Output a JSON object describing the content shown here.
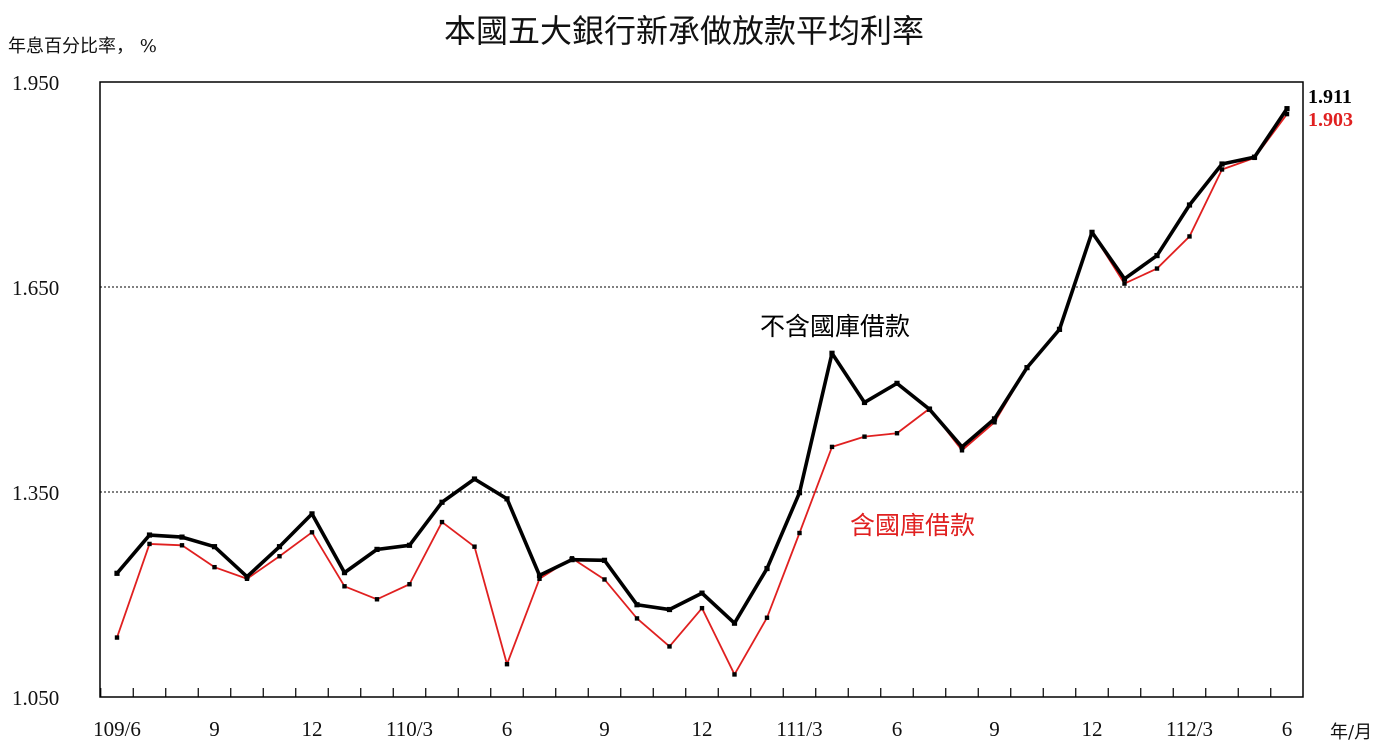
{
  "chart_data": {
    "type": "line",
    "title": "本國五大銀行新承做放款平均利率",
    "ylabel": "年息百分比率， %",
    "xlabel": "年/月",
    "ylim": [
      1.05,
      1.95
    ],
    "yticks": [
      "1.950",
      "1.650",
      "1.350",
      "1.050"
    ],
    "ytick_values": [
      1.95,
      1.65,
      1.35,
      1.05
    ],
    "gridlines_at": [
      1.65,
      1.35
    ],
    "x": [
      "109/6",
      "109/7",
      "109/8",
      "109/9",
      "109/10",
      "109/11",
      "109/12",
      "110/1",
      "110/2",
      "110/3",
      "110/4",
      "110/5",
      "110/6",
      "110/7",
      "110/8",
      "110/9",
      "110/10",
      "110/11",
      "110/12",
      "111/1",
      "111/2",
      "111/3",
      "111/4",
      "111/5",
      "111/6",
      "111/7",
      "111/8",
      "111/9",
      "111/10",
      "111/11",
      "111/12",
      "112/1",
      "112/2",
      "112/3",
      "112/4",
      "112/5",
      "112/6"
    ],
    "xtick_labels": [
      {
        "index": 0,
        "label": "109/6"
      },
      {
        "index": 3,
        "label": "9"
      },
      {
        "index": 6,
        "label": "12"
      },
      {
        "index": 9,
        "label": "110/3"
      },
      {
        "index": 12,
        "label": "6"
      },
      {
        "index": 15,
        "label": "9"
      },
      {
        "index": 18,
        "label": "12"
      },
      {
        "index": 21,
        "label": "111/3"
      },
      {
        "index": 24,
        "label": "6"
      },
      {
        "index": 27,
        "label": "9"
      },
      {
        "index": 30,
        "label": "12"
      },
      {
        "index": 33,
        "label": "112/3"
      },
      {
        "index": 36,
        "label": "6"
      }
    ],
    "series": [
      {
        "name": "不含國庫借款",
        "color": "#000000",
        "values": [
          1.231,
          1.287,
          1.284,
          1.27,
          1.226,
          1.27,
          1.318,
          1.232,
          1.266,
          1.272,
          1.335,
          1.369,
          1.34,
          1.228,
          1.251,
          1.25,
          1.185,
          1.178,
          1.202,
          1.158,
          1.238,
          1.349,
          1.553,
          1.481,
          1.509,
          1.471,
          1.416,
          1.457,
          1.532,
          1.588,
          1.73,
          1.662,
          1.696,
          1.77,
          1.83,
          1.84,
          1.911
        ],
        "end_label": "1.911"
      },
      {
        "name": "含國庫借款",
        "color": "#e02020",
        "values": [
          1.137,
          1.274,
          1.272,
          1.24,
          1.223,
          1.256,
          1.291,
          1.212,
          1.193,
          1.215,
          1.306,
          1.27,
          1.098,
          1.223,
          1.253,
          1.222,
          1.165,
          1.124,
          1.18,
          1.083,
          1.166,
          1.29,
          1.416,
          1.431,
          1.436,
          1.472,
          1.411,
          1.452,
          1.532,
          1.588,
          1.73,
          1.655,
          1.677,
          1.724,
          1.822,
          1.839,
          1.903
        ],
        "end_label": "1.903"
      }
    ]
  }
}
